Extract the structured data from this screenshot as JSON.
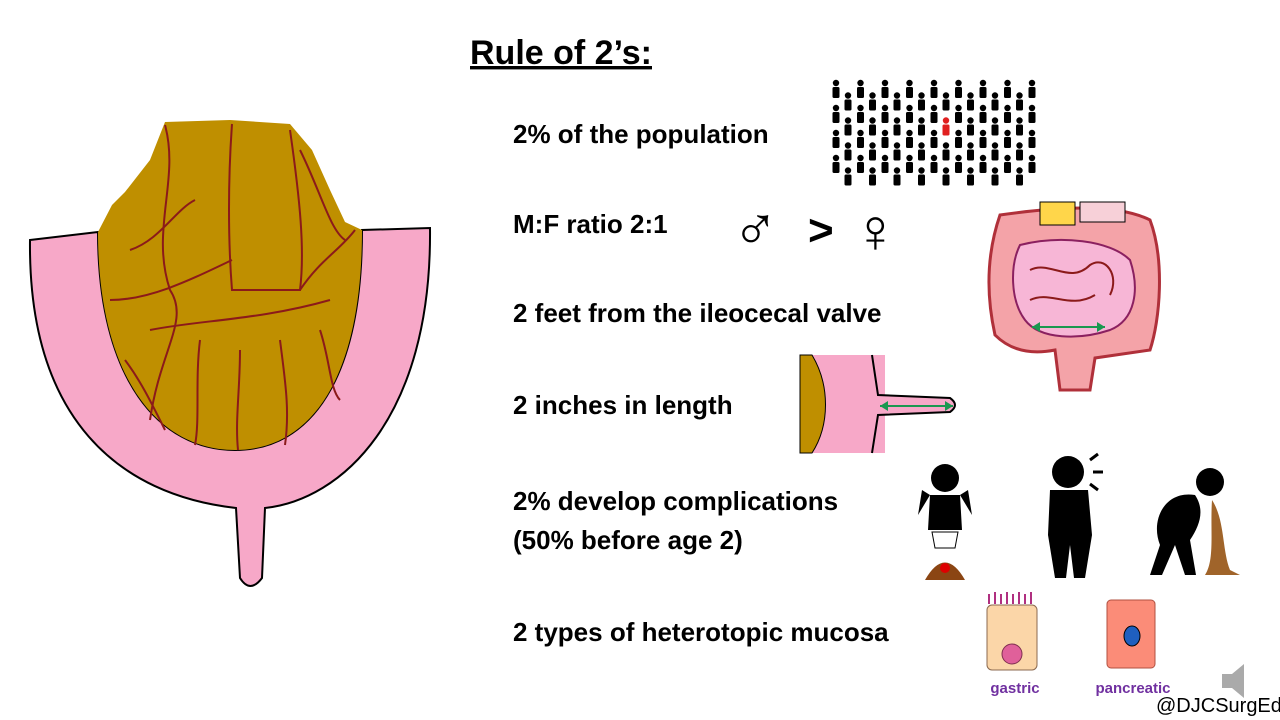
{
  "title": "Rule of 2’s:",
  "items": [
    "2% of the population",
    "M:F ratio 2:1",
    "2 feet from the ileocecal valve",
    "2 inches in length",
    "2% develop complications",
    "(50% before age 2)",
    "2 types of heterotopic mucosa"
  ],
  "ratio_symbols": [
    "♂",
    ">",
    "♀"
  ],
  "cell_labels": [
    "gastric",
    "pancreatic"
  ],
  "handle": "@DJCSurgEd"
}
